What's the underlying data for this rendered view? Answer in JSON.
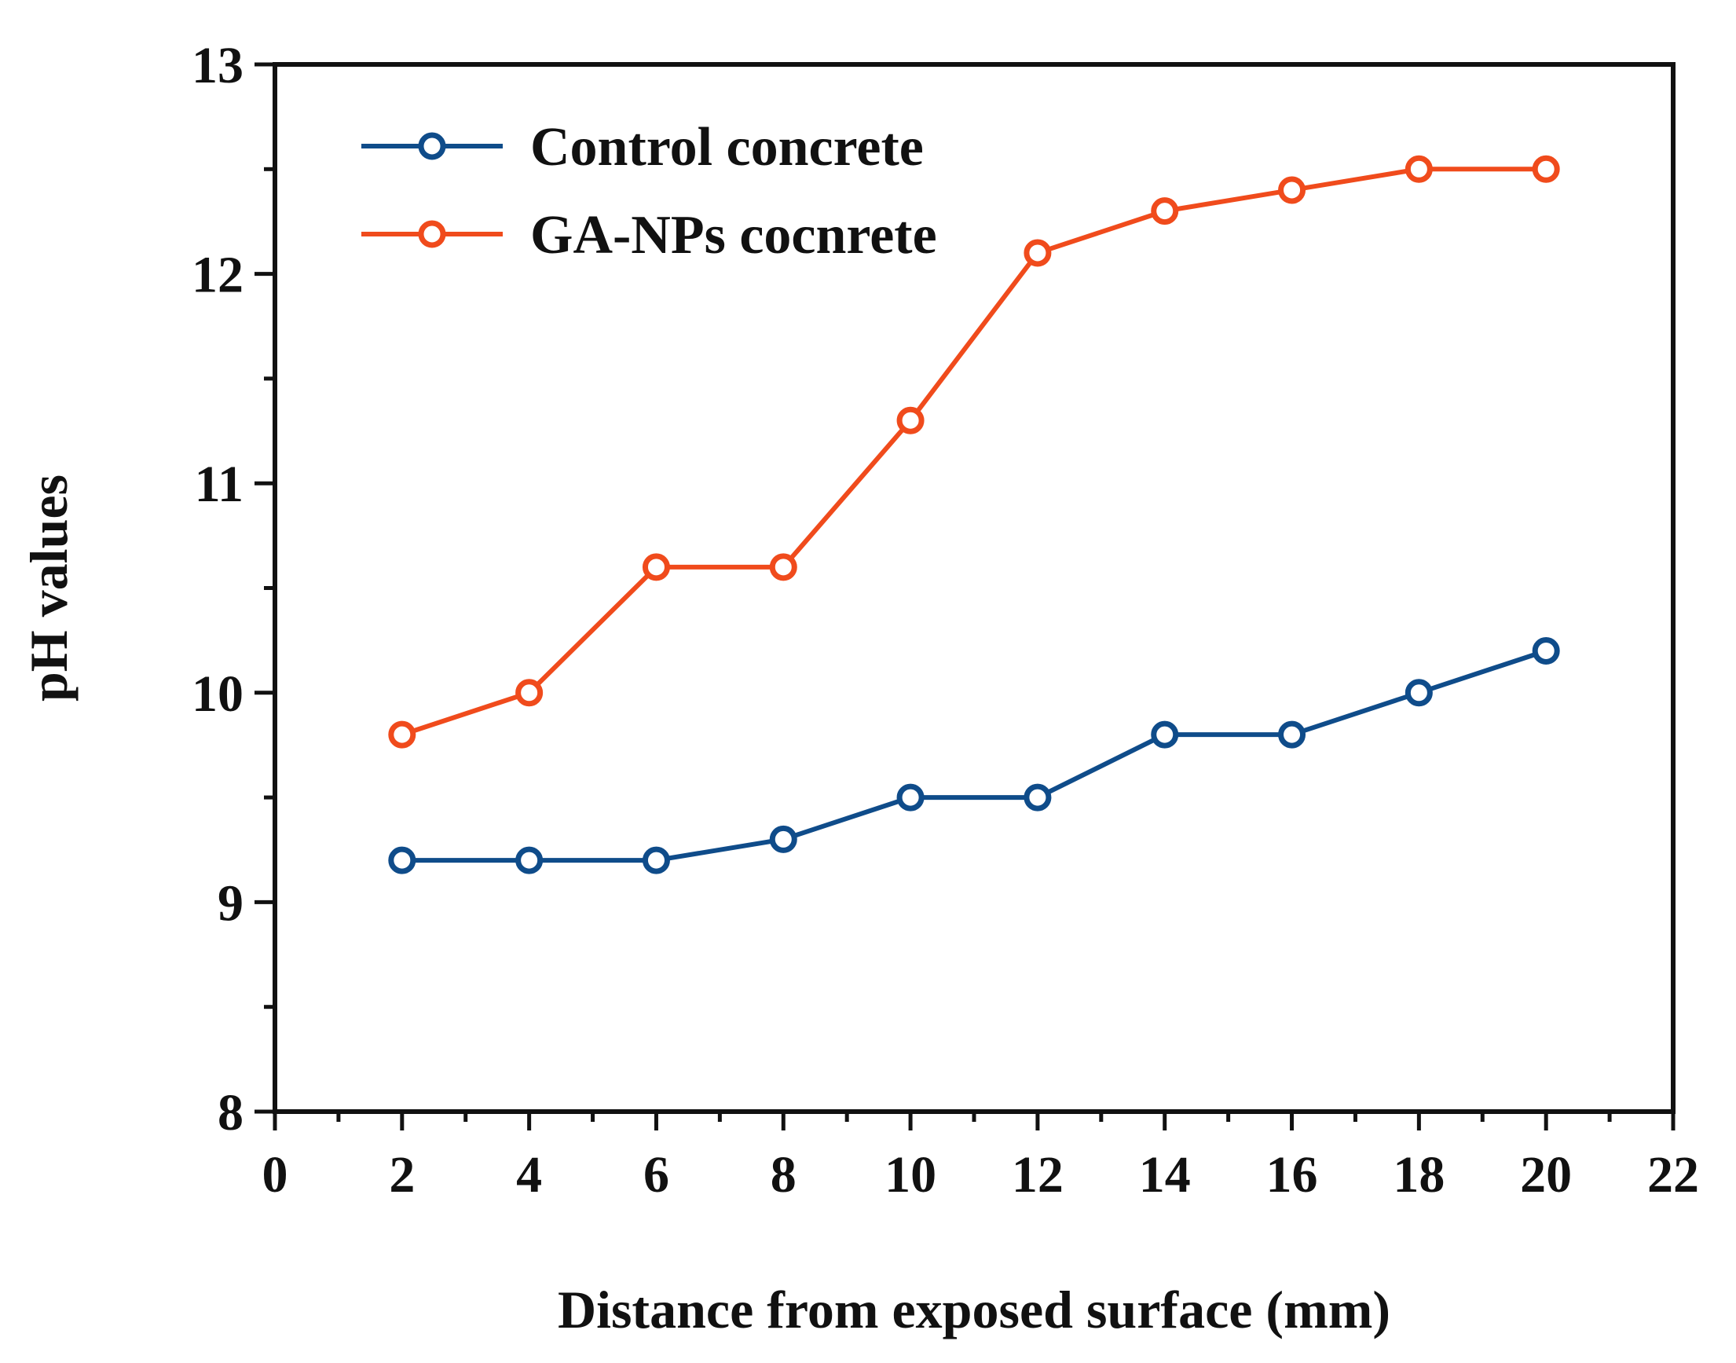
{
  "chart_data": {
    "type": "line",
    "title": "",
    "xlabel": "Distance from exposed surface (mm)",
    "ylabel": "pH values",
    "xlim": [
      0,
      22
    ],
    "ylim": [
      8,
      13
    ],
    "xticks": [
      0,
      2,
      4,
      6,
      8,
      10,
      12,
      14,
      16,
      18,
      20,
      22
    ],
    "xtick_labels": [
      "0",
      "2",
      "4",
      "6",
      "8",
      "10",
      "12",
      "14",
      "16",
      "18",
      "20",
      "22"
    ],
    "xminor_step": 1,
    "yticks": [
      8,
      9,
      10,
      11,
      12,
      13
    ],
    "ytick_labels": [
      "8",
      "9",
      "10",
      "11",
      "12",
      "13"
    ],
    "yminor_step": 0.5,
    "grid": false,
    "legend_position": "top-left",
    "x": [
      2,
      4,
      6,
      8,
      10,
      12,
      14,
      16,
      18,
      20
    ],
    "series": [
      {
        "name": "Control concrete",
        "color": "#0f4c8a",
        "values": [
          9.2,
          9.2,
          9.2,
          9.3,
          9.5,
          9.5,
          9.8,
          9.8,
          10.0,
          10.2
        ]
      },
      {
        "name": "GA-NPs cocnrete",
        "color": "#f04b1c",
        "values": [
          9.8,
          10.0,
          10.6,
          10.6,
          11.3,
          12.1,
          12.3,
          12.4,
          12.5,
          12.5
        ]
      }
    ]
  }
}
